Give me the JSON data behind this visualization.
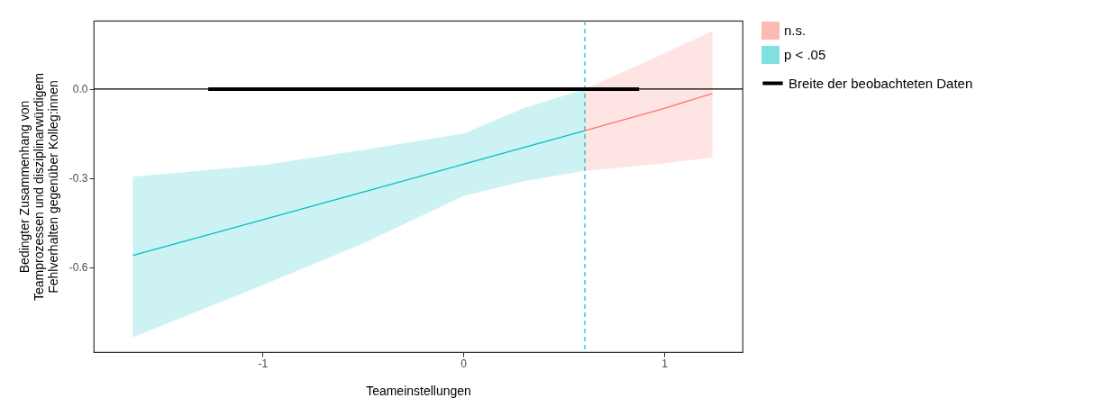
{
  "chart_data": {
    "type": "line",
    "xlabel": "Teameinstellungen",
    "ylabel": "Bedingter Zusammenhang von\nTeamprozessen und disziplinarwürdigem\nFehlverhalten gegenüber Kolleg:innen",
    "series": [
      {
        "name": "Breite der beobachteten Daten",
        "color": "#000000",
        "x": [
          -1.27,
          0.875
        ],
        "values": [
          0,
          0
        ]
      },
      {
        "name": "n.s.",
        "color": "#f8766d",
        "x": [
          0.605,
          1.0,
          1.24
        ],
        "values": [
          -0.14,
          -0.065,
          -0.015
        ],
        "lower": [
          -0.275,
          -0.25,
          -0.23
        ],
        "upper": [
          0.0,
          0.12,
          0.195
        ]
      },
      {
        "name": "p < .05",
        "color": "#00bfc4",
        "x": [
          -1.645,
          -1,
          -0.5,
          0,
          0.3,
          0.605
        ],
        "values": [
          -0.56,
          -0.44,
          -0.347,
          -0.253,
          -0.197,
          -0.14
        ],
        "lower": [
          -0.835,
          -0.66,
          -0.52,
          -0.36,
          -0.31,
          -0.275
        ],
        "upper": [
          -0.295,
          -0.256,
          -0.205,
          -0.15,
          -0.065,
          0.0
        ]
      }
    ],
    "xlim": [
      -1.84,
      1.39
    ],
    "ylim": [
      -0.885,
      0.23
    ],
    "xticks": [
      -1,
      0,
      1
    ],
    "yticks": [
      {
        "value": 0,
        "label": "0.0"
      },
      -0.3,
      -0.6
    ],
    "ref_lines": [
      {
        "axis": "y",
        "value": 0,
        "color": "#000000",
        "line_style": "solid"
      },
      {
        "axis": "x",
        "value": 0.605,
        "color": "#00bfc4",
        "line_style": "dashed"
      }
    ],
    "grid": false,
    "legend": "right",
    "line_style": "solid"
  }
}
